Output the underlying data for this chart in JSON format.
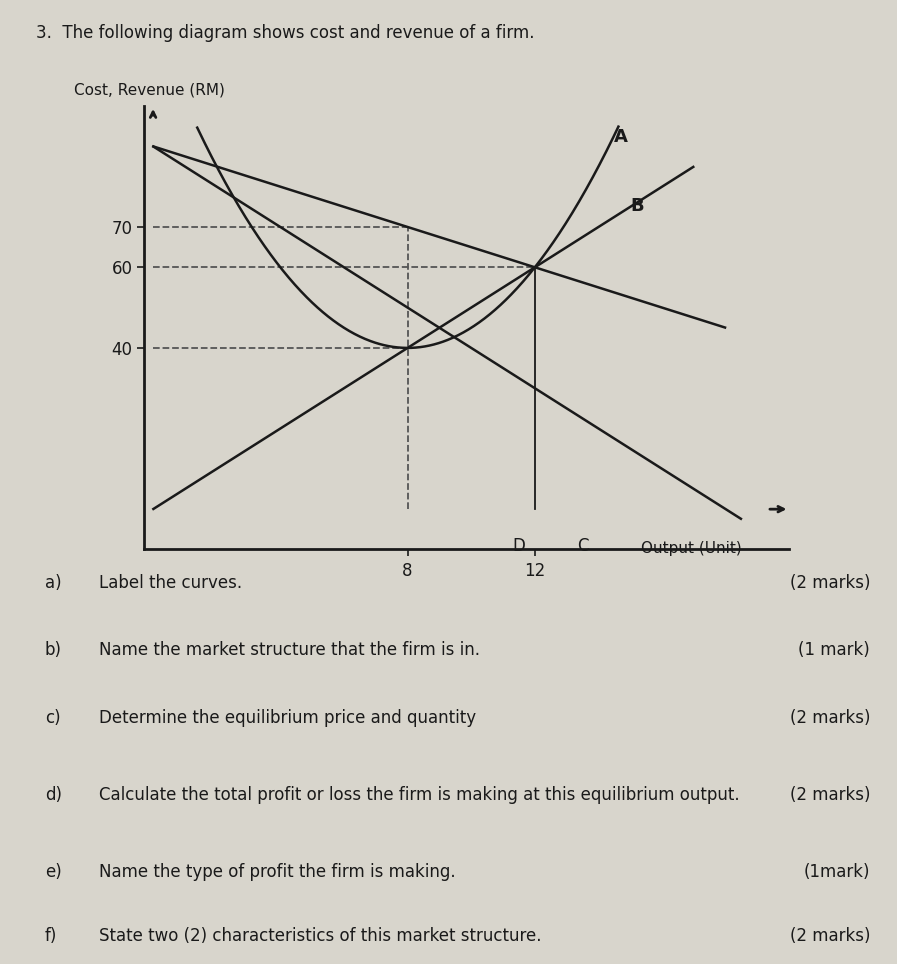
{
  "title": "3.  The following diagram shows cost and revenue of a firm.",
  "ylabel": "Cost, Revenue (RM)",
  "xlabel": "Output (Unit)",
  "yticks": [
    40,
    60,
    70
  ],
  "xticks": [
    8,
    12
  ],
  "xlim": [
    -0.3,
    20
  ],
  "ylim": [
    -10,
    100
  ],
  "bg_color": "#c8c8c0",
  "paper_color": "#d8d5cc",
  "line_color": "#1a1a1a",
  "dashed_color": "#555555",
  "label_A": "A",
  "label_B": "B",
  "label_D": "D",
  "label_C": "C",
  "questions": [
    {
      "letter": "a)",
      "text": "Label the curves.",
      "marks": "(2 marks)"
    },
    {
      "letter": "b)",
      "text": "Name the market structure that the firm is in.",
      "marks": "(1 mark)"
    },
    {
      "letter": "c)",
      "text": "Determine the equilibrium price and quantity",
      "marks": "(2 marks)"
    },
    {
      "letter": "d)",
      "text": "Calculate the total profit or loss the firm is making at this equilibrium output.",
      "marks": "(2 marks)"
    },
    {
      "letter": "e)",
      "text": "Name the type of profit the firm is making.",
      "marks": "(1mark)"
    },
    {
      "letter": "f)",
      "text": "State two (2) characteristics of this market structure.",
      "marks": "(2 marks)"
    }
  ]
}
